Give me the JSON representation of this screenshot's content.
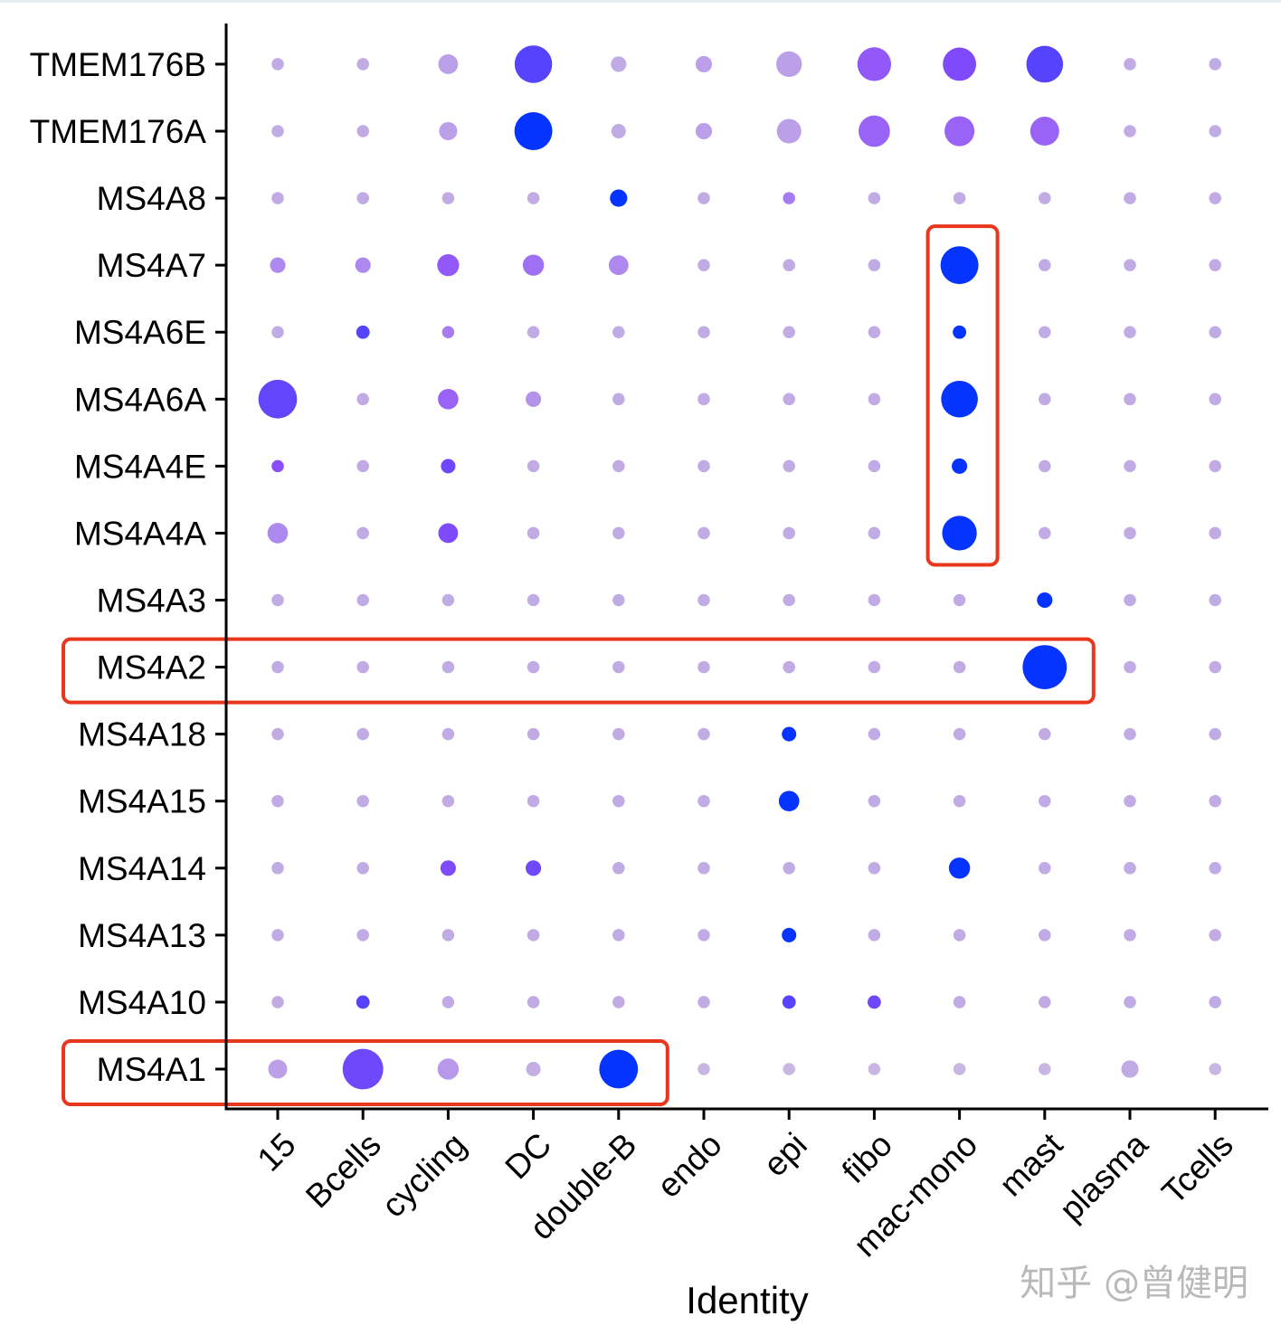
{
  "chart_data": {
    "type": "dotplot",
    "xlabel": "Identity",
    "ylabel": "",
    "categories": [
      "15",
      "Bcells",
      "cycling",
      "DC",
      "double-B",
      "endo",
      "epi",
      "fibo",
      "mac-mono",
      "mast",
      "plasma",
      "Tcells"
    ],
    "genes": [
      "MS4A1",
      "MS4A10",
      "MS4A13",
      "MS4A14",
      "MS4A15",
      "MS4A18",
      "MS4A2",
      "MS4A3",
      "MS4A4A",
      "MS4A4E",
      "MS4A6A",
      "MS4A6E",
      "MS4A7",
      "MS4A8",
      "TMEM176A",
      "TMEM176B"
    ],
    "value_semantics": "size = fraction of cells expressing (0-1); color = scaled average expression (0 = light lavender, 1 = blue)",
    "points": [
      {
        "gene": "MS4A1",
        "values": [
          [
            0.12,
            0.15
          ],
          [
            0.55,
            0.6
          ],
          [
            0.15,
            0.18
          ],
          [
            0.07,
            0.08
          ],
          [
            0.5,
            1.0
          ],
          [
            0.05,
            0.05
          ],
          [
            0.05,
            0.05
          ],
          [
            0.05,
            0.05
          ],
          [
            0.05,
            0.05
          ],
          [
            0.05,
            0.05
          ],
          [
            0.1,
            0.1
          ],
          [
            0.05,
            0.05
          ]
        ]
      },
      {
        "gene": "MS4A10",
        "values": [
          [
            0.05,
            0.1
          ],
          [
            0.06,
            0.7
          ],
          [
            0.05,
            0.1
          ],
          [
            0.05,
            0.1
          ],
          [
            0.05,
            0.1
          ],
          [
            0.05,
            0.1
          ],
          [
            0.06,
            0.7
          ],
          [
            0.06,
            0.6
          ],
          [
            0.05,
            0.1
          ],
          [
            0.05,
            0.1
          ],
          [
            0.05,
            0.1
          ],
          [
            0.05,
            0.1
          ]
        ]
      },
      {
        "gene": "MS4A13",
        "values": [
          [
            0.05,
            0.1
          ],
          [
            0.05,
            0.1
          ],
          [
            0.05,
            0.1
          ],
          [
            0.05,
            0.1
          ],
          [
            0.05,
            0.1
          ],
          [
            0.05,
            0.1
          ],
          [
            0.07,
            1.0
          ],
          [
            0.05,
            0.1
          ],
          [
            0.05,
            0.1
          ],
          [
            0.05,
            0.1
          ],
          [
            0.05,
            0.1
          ],
          [
            0.05,
            0.1
          ]
        ]
      },
      {
        "gene": "MS4A14",
        "values": [
          [
            0.05,
            0.1
          ],
          [
            0.05,
            0.1
          ],
          [
            0.08,
            0.55
          ],
          [
            0.08,
            0.6
          ],
          [
            0.05,
            0.1
          ],
          [
            0.05,
            0.1
          ],
          [
            0.05,
            0.1
          ],
          [
            0.05,
            0.1
          ],
          [
            0.15,
            1.0
          ],
          [
            0.05,
            0.1
          ],
          [
            0.05,
            0.1
          ],
          [
            0.05,
            0.1
          ]
        ]
      },
      {
        "gene": "MS4A15",
        "values": [
          [
            0.05,
            0.1
          ],
          [
            0.05,
            0.1
          ],
          [
            0.05,
            0.1
          ],
          [
            0.05,
            0.1
          ],
          [
            0.05,
            0.1
          ],
          [
            0.05,
            0.1
          ],
          [
            0.14,
            1.0
          ],
          [
            0.05,
            0.1
          ],
          [
            0.05,
            0.1
          ],
          [
            0.05,
            0.1
          ],
          [
            0.05,
            0.1
          ],
          [
            0.05,
            0.1
          ]
        ]
      },
      {
        "gene": "MS4A18",
        "values": [
          [
            0.05,
            0.1
          ],
          [
            0.05,
            0.1
          ],
          [
            0.05,
            0.1
          ],
          [
            0.05,
            0.1
          ],
          [
            0.05,
            0.1
          ],
          [
            0.05,
            0.1
          ],
          [
            0.07,
            1.0
          ],
          [
            0.05,
            0.1
          ],
          [
            0.05,
            0.1
          ],
          [
            0.05,
            0.1
          ],
          [
            0.05,
            0.1
          ],
          [
            0.05,
            0.1
          ]
        ]
      },
      {
        "gene": "MS4A2",
        "values": [
          [
            0.05,
            0.1
          ],
          [
            0.05,
            0.1
          ],
          [
            0.05,
            0.1
          ],
          [
            0.05,
            0.1
          ],
          [
            0.05,
            0.1
          ],
          [
            0.05,
            0.1
          ],
          [
            0.05,
            0.1
          ],
          [
            0.05,
            0.1
          ],
          [
            0.05,
            0.1
          ],
          [
            0.65,
            1.0
          ],
          [
            0.05,
            0.1
          ],
          [
            0.05,
            0.1
          ]
        ]
      },
      {
        "gene": "MS4A3",
        "values": [
          [
            0.05,
            0.1
          ],
          [
            0.05,
            0.1
          ],
          [
            0.05,
            0.1
          ],
          [
            0.05,
            0.1
          ],
          [
            0.05,
            0.1
          ],
          [
            0.05,
            0.1
          ],
          [
            0.05,
            0.1
          ],
          [
            0.05,
            0.1
          ],
          [
            0.05,
            0.1
          ],
          [
            0.08,
            1.0
          ],
          [
            0.05,
            0.1
          ],
          [
            0.05,
            0.1
          ]
        ]
      },
      {
        "gene": "MS4A4A",
        "values": [
          [
            0.14,
            0.25
          ],
          [
            0.05,
            0.1
          ],
          [
            0.13,
            0.55
          ],
          [
            0.05,
            0.1
          ],
          [
            0.05,
            0.1
          ],
          [
            0.05,
            0.1
          ],
          [
            0.05,
            0.1
          ],
          [
            0.05,
            0.1
          ],
          [
            0.4,
            1.0
          ],
          [
            0.05,
            0.1
          ],
          [
            0.05,
            0.1
          ],
          [
            0.05,
            0.1
          ]
        ]
      },
      {
        "gene": "MS4A4E",
        "values": [
          [
            0.05,
            0.5
          ],
          [
            0.05,
            0.1
          ],
          [
            0.07,
            0.6
          ],
          [
            0.05,
            0.1
          ],
          [
            0.05,
            0.1
          ],
          [
            0.05,
            0.1
          ],
          [
            0.05,
            0.1
          ],
          [
            0.05,
            0.1
          ],
          [
            0.08,
            1.0
          ],
          [
            0.05,
            0.1
          ],
          [
            0.05,
            0.1
          ],
          [
            0.05,
            0.1
          ]
        ]
      },
      {
        "gene": "MS4A6A",
        "values": [
          [
            0.5,
            0.65
          ],
          [
            0.05,
            0.1
          ],
          [
            0.14,
            0.4
          ],
          [
            0.08,
            0.2
          ],
          [
            0.05,
            0.1
          ],
          [
            0.05,
            0.1
          ],
          [
            0.05,
            0.1
          ],
          [
            0.05,
            0.1
          ],
          [
            0.45,
            1.0
          ],
          [
            0.05,
            0.1
          ],
          [
            0.05,
            0.1
          ],
          [
            0.05,
            0.1
          ]
        ]
      },
      {
        "gene": "MS4A6E",
        "values": [
          [
            0.05,
            0.1
          ],
          [
            0.06,
            0.7
          ],
          [
            0.05,
            0.3
          ],
          [
            0.05,
            0.1
          ],
          [
            0.05,
            0.1
          ],
          [
            0.05,
            0.1
          ],
          [
            0.05,
            0.1
          ],
          [
            0.05,
            0.1
          ],
          [
            0.06,
            1.0
          ],
          [
            0.05,
            0.1
          ],
          [
            0.05,
            0.1
          ],
          [
            0.05,
            0.1
          ]
        ]
      },
      {
        "gene": "MS4A7",
        "values": [
          [
            0.08,
            0.25
          ],
          [
            0.08,
            0.25
          ],
          [
            0.16,
            0.45
          ],
          [
            0.15,
            0.35
          ],
          [
            0.13,
            0.25
          ],
          [
            0.05,
            0.1
          ],
          [
            0.05,
            0.1
          ],
          [
            0.05,
            0.1
          ],
          [
            0.48,
            1.0
          ],
          [
            0.05,
            0.1
          ],
          [
            0.05,
            0.1
          ],
          [
            0.05,
            0.1
          ]
        ]
      },
      {
        "gene": "MS4A8",
        "values": [
          [
            0.05,
            0.1
          ],
          [
            0.05,
            0.1
          ],
          [
            0.05,
            0.1
          ],
          [
            0.05,
            0.1
          ],
          [
            0.1,
            1.0
          ],
          [
            0.05,
            0.1
          ],
          [
            0.05,
            0.3
          ],
          [
            0.05,
            0.1
          ],
          [
            0.05,
            0.1
          ],
          [
            0.05,
            0.1
          ],
          [
            0.05,
            0.1
          ],
          [
            0.05,
            0.1
          ]
        ]
      },
      {
        "gene": "TMEM176A",
        "values": [
          [
            0.05,
            0.1
          ],
          [
            0.05,
            0.1
          ],
          [
            0.11,
            0.15
          ],
          [
            0.48,
            1.0
          ],
          [
            0.07,
            0.1
          ],
          [
            0.09,
            0.15
          ],
          [
            0.2,
            0.15
          ],
          [
            0.33,
            0.4
          ],
          [
            0.3,
            0.4
          ],
          [
            0.28,
            0.4
          ],
          [
            0.05,
            0.1
          ],
          [
            0.05,
            0.1
          ]
        ]
      },
      {
        "gene": "TMEM176B",
        "values": [
          [
            0.05,
            0.1
          ],
          [
            0.05,
            0.1
          ],
          [
            0.13,
            0.15
          ],
          [
            0.47,
            0.7
          ],
          [
            0.08,
            0.1
          ],
          [
            0.09,
            0.15
          ],
          [
            0.22,
            0.15
          ],
          [
            0.38,
            0.45
          ],
          [
            0.37,
            0.55
          ],
          [
            0.45,
            0.7
          ],
          [
            0.05,
            0.1
          ],
          [
            0.05,
            0.1
          ]
        ]
      }
    ],
    "highlight_boxes": [
      {
        "name": "mac-mono-column",
        "category": "mac-mono",
        "genes": [
          "MS4A7",
          "MS4A6E",
          "MS4A6A",
          "MS4A4E",
          "MS4A4A"
        ]
      },
      {
        "name": "ms4a2-row",
        "gene": "MS4A2",
        "from_category": "label",
        "to_category": "mast"
      },
      {
        "name": "ms4a1-row",
        "gene": "MS4A1",
        "from_category": "label",
        "to_category": "double-B"
      }
    ],
    "highlight_color": "#e8371d",
    "color_low": "#cfc2e0",
    "color_mid": "#8b4dfb",
    "color_high": "#0533ff",
    "watermark": "知乎 @曾健明"
  }
}
